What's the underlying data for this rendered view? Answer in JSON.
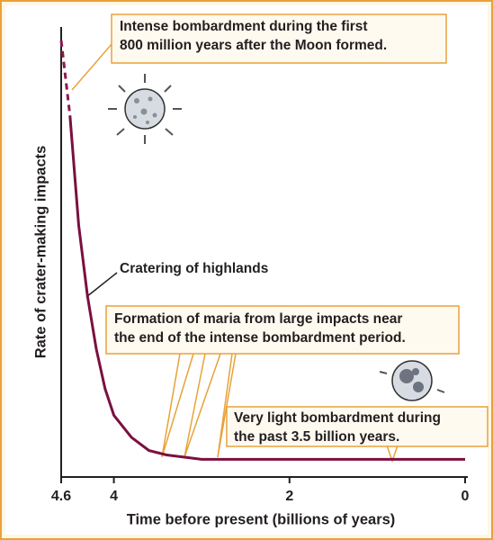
{
  "chart_data": {
    "type": "line",
    "x_label": "Time before present (billions of years)",
    "y_label": "Rate of crater-making impacts",
    "x": [
      4.6,
      4.5,
      4.4,
      4.3,
      4.2,
      4.1,
      4.0,
      3.8,
      3.6,
      3.4,
      3.0,
      2.0,
      1.0,
      0
    ],
    "series": [
      {
        "color": "#8b1a4f",
        "dash": true,
        "values": [
          99,
          82,
          null,
          null,
          null,
          null,
          null,
          null,
          null,
          null,
          null,
          null,
          null,
          null
        ]
      },
      {
        "color": "#7a1040",
        "dash": false,
        "values": [
          null,
          82,
          57,
          41,
          29,
          20,
          14,
          9,
          6,
          5,
          4,
          4,
          4,
          4
        ]
      }
    ],
    "xlim": [
      4.6,
      0
    ],
    "xticks": [
      4.6,
      4,
      2,
      0
    ],
    "ylim": [
      0,
      100
    ],
    "annotations": [
      {
        "lines": [
          "Intense bombardment during the first",
          "800 million years after the Moon formed."
        ]
      },
      {
        "lines": [
          "Cratering of highlands"
        ]
      },
      {
        "lines": [
          "Formation of maria from large impacts near",
          "the end of the intense bombardment period."
        ]
      },
      {
        "lines": [
          "Very light bombardment during",
          "the past 3.5 billion years."
        ]
      }
    ]
  }
}
